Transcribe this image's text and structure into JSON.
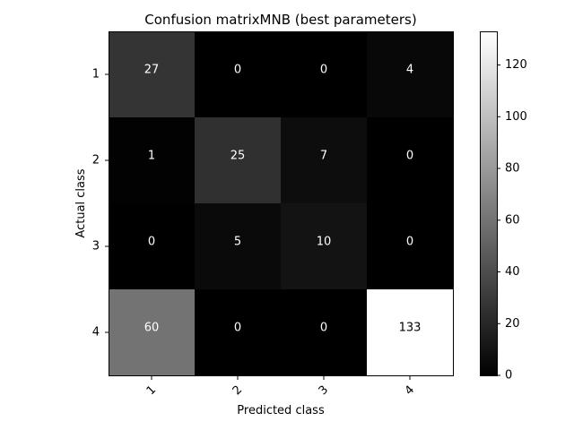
{
  "chart_data": {
    "type": "heatmap",
    "title": "Confusion matrixMNB (best parameters)",
    "xlabel": "Predicted class",
    "ylabel": "Actual class",
    "x_categories": [
      "1",
      "2",
      "3",
      "4"
    ],
    "y_categories": [
      "1",
      "2",
      "3",
      "4"
    ],
    "values": [
      [
        27,
        0,
        0,
        4
      ],
      [
        1,
        25,
        7,
        0
      ],
      [
        0,
        5,
        10,
        0
      ],
      [
        60,
        0,
        0,
        133
      ]
    ],
    "colormap": "gray",
    "vmin": 0,
    "vmax": 133,
    "colorbar_ticks": [
      0,
      20,
      40,
      60,
      80,
      100,
      120
    ],
    "annotation_colors": {
      "light_cells": "#000000",
      "dark_cells": "#ffffff"
    },
    "grid": false
  }
}
